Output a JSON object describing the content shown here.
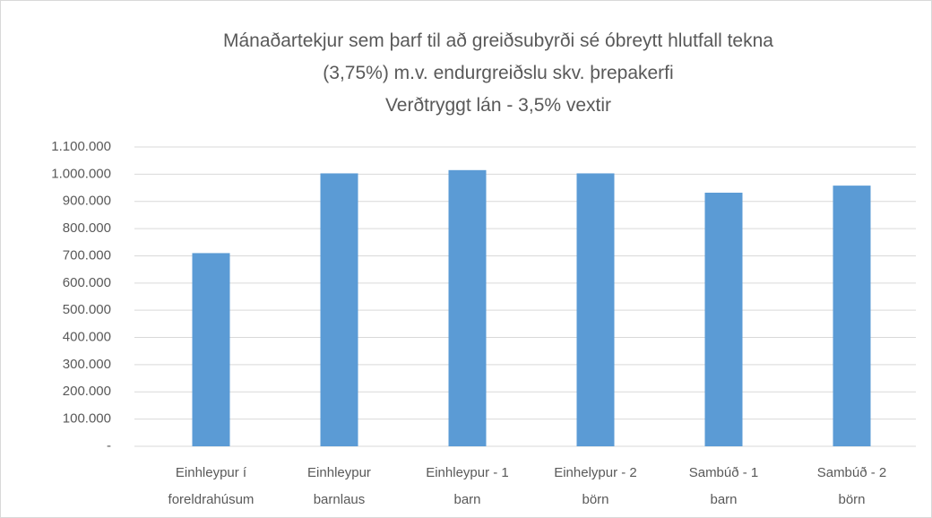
{
  "chart_data": {
    "type": "bar",
    "title": [
      "Mánaðartekjur sem þarf til að greiðsubyrði sé óbreytt hlutfall tekna",
      "(3,75%) m.v. endurgreiðslu skv. þrepakerfi",
      "Verðtryggt lán -  3,5%  vextir"
    ],
    "categories": [
      [
        "Einhleypur í",
        "foreldrahúsum"
      ],
      [
        "Einhleypur",
        "barnlaus"
      ],
      [
        "Einhleypur - 1",
        "barn"
      ],
      [
        "Einhelypur - 2",
        "börn"
      ],
      [
        "Sambúð - 1",
        "barn"
      ],
      [
        "Sambúð - 2",
        "börn"
      ]
    ],
    "values": [
      710000,
      1003000,
      1015000,
      1003000,
      932000,
      958000
    ],
    "color": "#5b9bd5",
    "ylim": [
      0,
      1100000
    ],
    "yticks": [
      {
        "value": 0,
        "label": "-"
      },
      {
        "value": 100000,
        "label": "100.000"
      },
      {
        "value": 200000,
        "label": "200.000"
      },
      {
        "value": 300000,
        "label": "300.000"
      },
      {
        "value": 400000,
        "label": "400.000"
      },
      {
        "value": 500000,
        "label": "500.000"
      },
      {
        "value": 600000,
        "label": "600.000"
      },
      {
        "value": 700000,
        "label": "700.000"
      },
      {
        "value": 800000,
        "label": "800.000"
      },
      {
        "value": 900000,
        "label": "900.000"
      },
      {
        "value": 1000000,
        "label": "1.000.000"
      },
      {
        "value": 1100000,
        "label": "1.100.000"
      }
    ],
    "grid": true
  }
}
